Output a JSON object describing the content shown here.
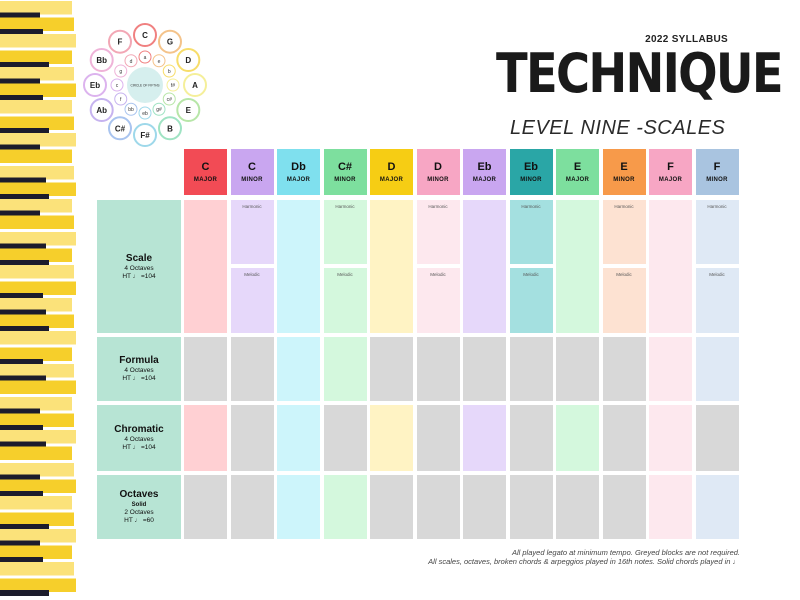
{
  "header": {
    "syllabus": "2022 SYLLABUS",
    "title": "TECHNIQUE",
    "subtitle": "LEVEL NINE -SCALES"
  },
  "circle_of_fifths": {
    "center_label": "CIRCLE OF FIFTHS",
    "outer": [
      "C",
      "G",
      "D",
      "A",
      "E",
      "B",
      "F#",
      "C#",
      "Ab",
      "Eb",
      "Bb",
      "F"
    ],
    "inner": [
      "a",
      "e",
      "b",
      "f#",
      "c#",
      "g#",
      "eb",
      "bb",
      "f",
      "c",
      "g",
      "d"
    ],
    "colors": [
      "#f08080",
      "#f4c38a",
      "#f7dd6a",
      "#f5ef9a",
      "#b7e6a8",
      "#9fe3c3",
      "#9ed8ea",
      "#a9c4ef",
      "#c6b3ef",
      "#dcb3ee",
      "#efb3d8",
      "#f2a7b5"
    ]
  },
  "columns": [
    {
      "key": "C",
      "quality": "MAJOR",
      "color": "#f24b55",
      "light": "#ffd0d3",
      "type": "major"
    },
    {
      "key": "C",
      "quality": "MINOR",
      "color": "#c9a6f0",
      "light": "#e6d8fa",
      "type": "minor"
    },
    {
      "key": "Db",
      "quality": "MAJOR",
      "color": "#7fe0ee",
      "light": "#cdf5fb",
      "type": "major"
    },
    {
      "key": "C#",
      "quality": "MINOR",
      "color": "#7ddf9e",
      "light": "#d4f8dd",
      "type": "minor"
    },
    {
      "key": "D",
      "quality": "MAJOR",
      "color": "#f6cd14",
      "light": "#fff3c4",
      "type": "major"
    },
    {
      "key": "D",
      "quality": "MINOR",
      "color": "#f7a6c4",
      "light": "#fde8ee",
      "type": "minor"
    },
    {
      "key": "Eb",
      "quality": "MAJOR",
      "color": "#c9a6f0",
      "light": "#e6d8fa",
      "type": "major"
    },
    {
      "key": "Eb",
      "quality": "MINOR",
      "color": "#2aa6a6",
      "light": "#a4e0e0",
      "type": "minor"
    },
    {
      "key": "E",
      "quality": "MAJOR",
      "color": "#7ddf9e",
      "light": "#d4f8dd",
      "type": "major"
    },
    {
      "key": "E",
      "quality": "MINOR",
      "color": "#f79a4a",
      "light": "#fde2d2",
      "type": "minor"
    },
    {
      "key": "F",
      "quality": "MAJOR",
      "color": "#f7a6c4",
      "light": "#fde8ee",
      "type": "major"
    },
    {
      "key": "F",
      "quality": "MINOR",
      "color": "#a9c4e0",
      "light": "#dfe9f5",
      "type": "minor"
    }
  ],
  "rows": [
    {
      "name": "Scale",
      "lines": [
        "4 Octaves",
        "HT ♩ =104"
      ],
      "harmonic": "Harmonic",
      "melodic": "Melodic"
    },
    {
      "name": "Formula",
      "lines": [
        "4 Octaves",
        "HT ♩ =104"
      ]
    },
    {
      "name": "Chromatic",
      "lines": [
        "4 Octaves",
        "HT ♩ =104"
      ]
    },
    {
      "name": "Octaves",
      "bold": "Solid",
      "lines": [
        "2 Octaves",
        "HT ♩ =60"
      ]
    }
  ],
  "formula_grey": [
    0,
    1,
    4,
    5,
    6,
    7,
    8,
    9
  ],
  "chromatic_grey": [
    1,
    3,
    5,
    7,
    9,
    11
  ],
  "octaves_grey": [
    0,
    1,
    4,
    5,
    6,
    7,
    8,
    9
  ],
  "footer": [
    "All played legato at minimum tempo. Greyed blocks are not required.",
    "All scales, octaves, broken chords & arpeggios played in 16th notes. Solid chords played in ♩"
  ],
  "grey": "#d8d8d8"
}
